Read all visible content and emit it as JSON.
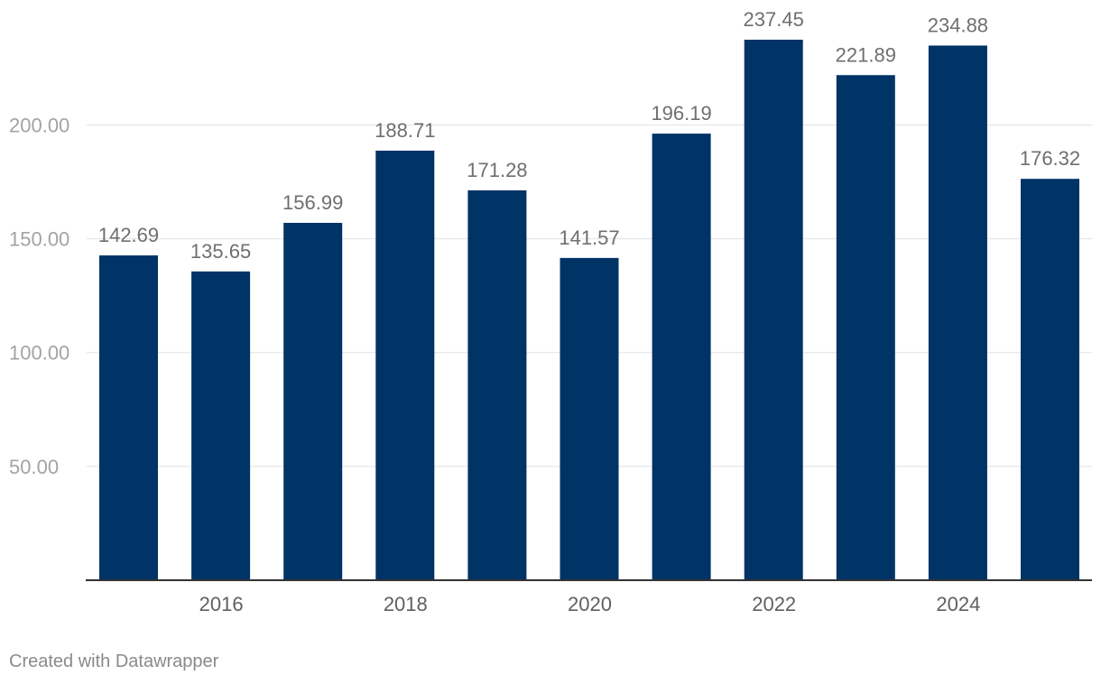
{
  "chart_data": {
    "type": "bar",
    "x": [
      2015,
      2016,
      2017,
      2018,
      2019,
      2020,
      2021,
      2022,
      2023,
      2024,
      2025
    ],
    "values": [
      142.69,
      135.65,
      156.99,
      188.71,
      171.28,
      141.57,
      196.19,
      237.45,
      221.89,
      234.88,
      176.32
    ],
    "value_labels": [
      "142.69",
      "135.65",
      "156.99",
      "188.71",
      "171.28",
      "141.57",
      "196.19",
      "237.45",
      "221.89",
      "234.88",
      "176.32"
    ],
    "x_tick_labels": [
      "2016",
      "2018",
      "2020",
      "2022",
      "2024"
    ],
    "x_tick_values": [
      2016,
      2018,
      2020,
      2022,
      2024
    ],
    "y_ticks": [
      50,
      100,
      150,
      200
    ],
    "y_tick_labels": [
      "50.00",
      "100.00",
      "150.00",
      "200.00"
    ],
    "ylim": [
      0,
      237.45
    ],
    "grid": true,
    "bar_color": "#003366",
    "title": "",
    "xlabel": "",
    "ylabel": ""
  },
  "footer": {
    "credit": "Created with Datawrapper"
  }
}
